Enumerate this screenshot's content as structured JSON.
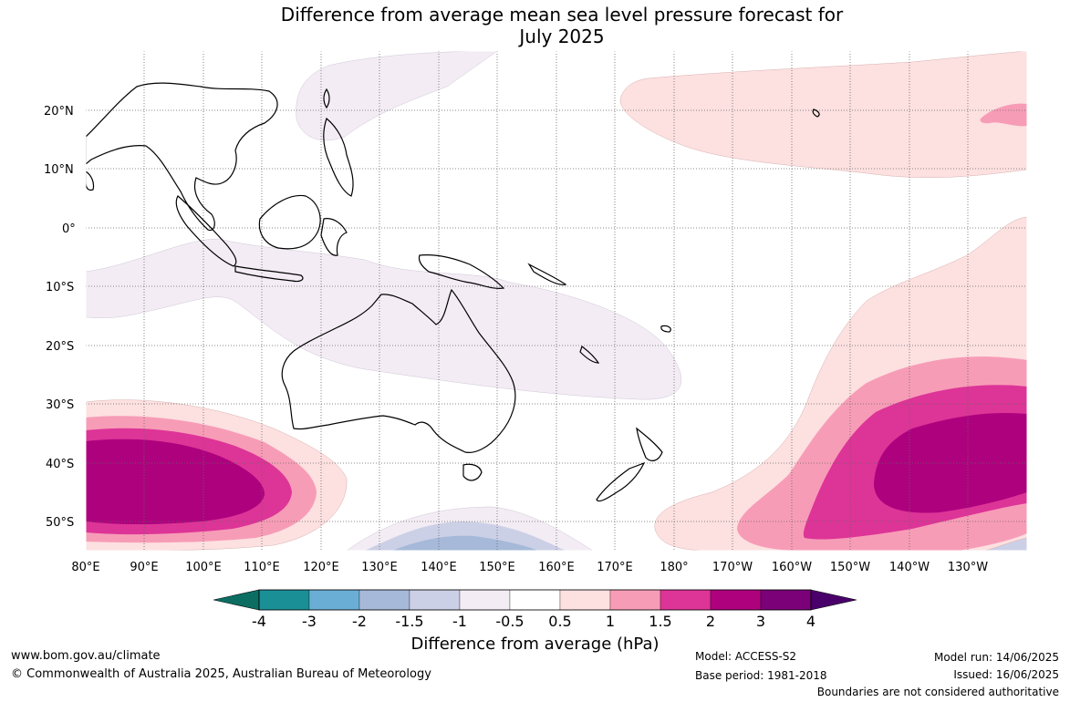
{
  "title_line1": "Difference from average mean sea level pressure forecast for",
  "title_line2": "July 2025",
  "lat_labels": [
    "20°N",
    "10°N",
    "0°",
    "10°S",
    "20°S",
    "30°S",
    "40°S",
    "50°S"
  ],
  "lon_labels": [
    "80°E",
    "90°E",
    "100°E",
    "110°E",
    "120°E",
    "130°E",
    "140°E",
    "150°E",
    "160°E",
    "170°E",
    "180°",
    "170°W",
    "160°W",
    "150°W",
    "140°W",
    "130°W"
  ],
  "colorbar": {
    "ticks": [
      "-4",
      "-3",
      "-2",
      "-1.5",
      "-1",
      "-0.5",
      "0.5",
      "1",
      "1.5",
      "2",
      "3",
      "4"
    ],
    "colors": [
      "#0c6e63",
      "#1b8f96",
      "#6aaed5",
      "#a6b9d9",
      "#ccd0e6",
      "#f3ecf4",
      "#ffffff",
      "#fde0e0",
      "#f79cb7",
      "#dd3497",
      "#ae017e",
      "#7a0177",
      "#49006a"
    ],
    "title": "Difference from average (hPa)"
  },
  "footer": {
    "website": "www.bom.gov.au/climate",
    "copyright": "© Commonwealth of Australia 2025, Australian Bureau of Meteorology",
    "model": "Model: ACCESS-S2",
    "base_period": "Base period: 1981-2018",
    "model_run": "Model run: 14/06/2025",
    "issued": "Issued: 16/06/2025",
    "boundaries": "Boundaries are not considered authoritative"
  }
}
